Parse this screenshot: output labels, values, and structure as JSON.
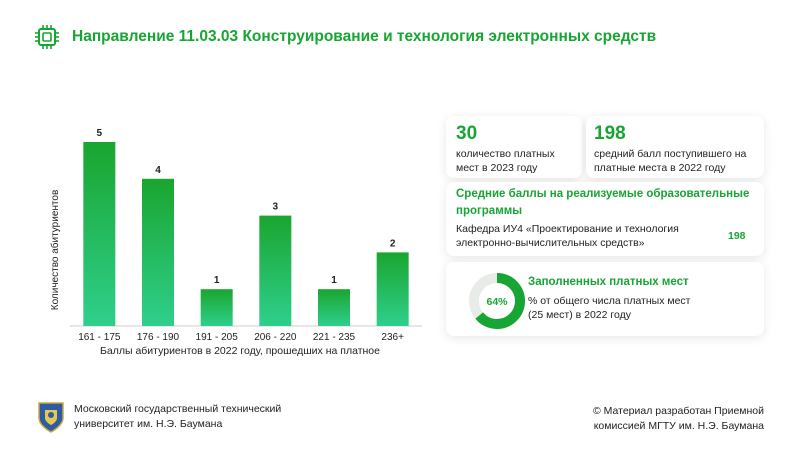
{
  "header": {
    "title": "Направление 11.03.03 Конструирование и технология электронных средств"
  },
  "chart_data": {
    "type": "bar",
    "categories": [
      "161 - 175",
      "176 - 190",
      "191 - 205",
      "206 - 220",
      "221 - 235",
      "236+"
    ],
    "values": [
      5,
      4,
      1,
      3,
      1,
      2
    ],
    "xlabel": "Баллы абитуриентов в 2022 году, прошедших на платное",
    "ylabel": "Количество абитуриентов",
    "ylim": [
      0,
      5
    ],
    "grid": false,
    "colors": {
      "bar_top": "#1aa52f",
      "bar_bottom": "#2fcf8c"
    }
  },
  "cards": {
    "paid_places": {
      "value": "30",
      "label": "количество платных мест в 2023 году"
    },
    "avg_score": {
      "value": "198",
      "label": "средний балл поступившего на платные места в 2022 году"
    },
    "programs": {
      "title": "Средние баллы на реализуемые образовательные программы",
      "item_label": "Кафедра ИУ4 «Проектирование и технология электронно-вычислительных средств»",
      "item_value": "198"
    },
    "filled": {
      "title": "Заполненных платных мест",
      "percent_label": "64%",
      "percent_value": 64,
      "description": "% от общего числа платных мест (25 мест) в 2022 году"
    }
  },
  "footer": {
    "university": "Московский государственный технический университет им. Н.Э. Баумана",
    "credit": "© Материал разработан Приемной комиссией МГТУ им. Н.Э. Баумана"
  },
  "colors": {
    "accent": "#17a534",
    "ring_track": "#e8ece9"
  }
}
